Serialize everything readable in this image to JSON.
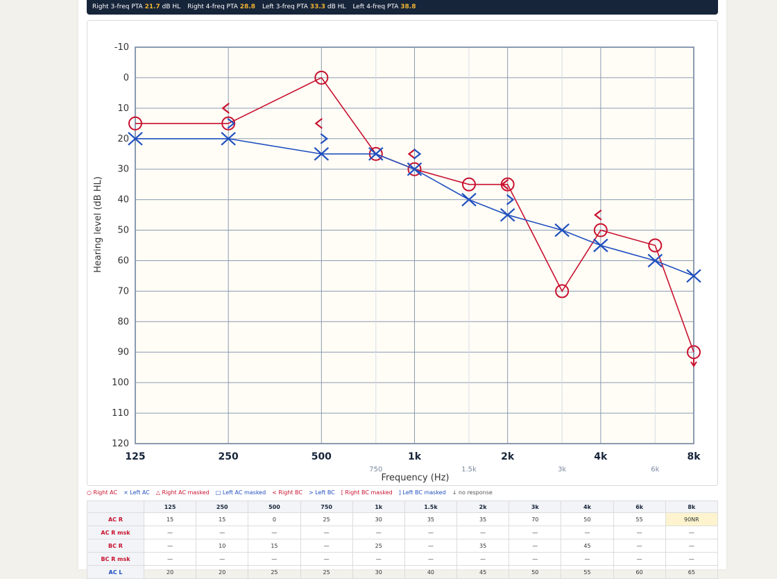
{
  "pta": [
    {
      "label": "Right 3-freq PTA",
      "value": "21.7",
      "unit": "dB HL"
    },
    {
      "label": "Right 4-freq PTA",
      "value": "28.8",
      "unit": ""
    },
    {
      "label": "Left 3-freq PTA",
      "value": "33.3",
      "unit": "dB HL"
    },
    {
      "label": "Left 4-freq PTA",
      "value": "38.8",
      "unit": ""
    }
  ],
  "colors": {
    "right": "#c8102e",
    "left": "#1f4fbf",
    "plot_bg": "#fffdf6",
    "grid": "#8a9ab0",
    "grid_minor": "#d5dbe5",
    "pta_bar": "#17253a",
    "pta_value": "#f2b431"
  },
  "chart_data": {
    "type": "line",
    "title": "",
    "xlabel": "Frequency (Hz)",
    "ylabel": "Hearing level (dB HL)",
    "x_scale": "log2",
    "y_inverted": true,
    "ylim": [
      -10,
      120
    ],
    "yticks": [
      "-10",
      "0",
      "10",
      "20",
      "30",
      "40",
      "50",
      "60",
      "70",
      "80",
      "90",
      "100",
      "110",
      "120"
    ],
    "xticks_major": [
      {
        "hz": 125,
        "label": "125"
      },
      {
        "hz": 250,
        "label": "250"
      },
      {
        "hz": 500,
        "label": "500"
      },
      {
        "hz": 1000,
        "label": "1k"
      },
      {
        "hz": 2000,
        "label": "2k"
      },
      {
        "hz": 4000,
        "label": "4k"
      },
      {
        "hz": 8000,
        "label": "8k"
      }
    ],
    "xticks_minor": [
      {
        "hz": 750,
        "label": "750"
      },
      {
        "hz": 1500,
        "label": "1.5k"
      },
      {
        "hz": 3000,
        "label": "3k"
      },
      {
        "hz": 6000,
        "label": "6k"
      }
    ],
    "grid": true,
    "series": [
      {
        "name": "Right AC",
        "symbol": "circle",
        "color": "#c8102e",
        "connected": true,
        "points": [
          [
            125,
            15
          ],
          [
            250,
            15
          ],
          [
            500,
            0
          ],
          [
            750,
            25
          ],
          [
            1000,
            30
          ],
          [
            1500,
            35
          ],
          [
            2000,
            35
          ],
          [
            3000,
            70
          ],
          [
            4000,
            50
          ],
          [
            6000,
            55
          ],
          [
            8000,
            90
          ]
        ],
        "no_response": [
          8000
        ]
      },
      {
        "name": "Left AC",
        "symbol": "cross",
        "color": "#1f4fbf",
        "connected": true,
        "points": [
          [
            125,
            20
          ],
          [
            250,
            20
          ],
          [
            500,
            25
          ],
          [
            750,
            25
          ],
          [
            1000,
            30
          ],
          [
            1500,
            40
          ],
          [
            2000,
            45
          ],
          [
            3000,
            50
          ],
          [
            4000,
            55
          ],
          [
            6000,
            60
          ],
          [
            8000,
            65
          ]
        ]
      },
      {
        "name": "Right BC",
        "symbol": "lt",
        "color": "#c8102e",
        "connected": false,
        "points": [
          [
            250,
            10
          ],
          [
            500,
            15
          ],
          [
            1000,
            25
          ],
          [
            2000,
            35
          ],
          [
            4000,
            45
          ]
        ]
      },
      {
        "name": "Left BC",
        "symbol": "gt",
        "color": "#1f4fbf",
        "connected": false,
        "points": [
          [
            250,
            15
          ],
          [
            500,
            20
          ],
          [
            1000,
            25
          ],
          [
            2000,
            40
          ]
        ]
      }
    ]
  },
  "legend": [
    {
      "text": "○ Right AC",
      "color": "#c8102e"
    },
    {
      "text": "× Left AC",
      "color": "#1f4fbf"
    },
    {
      "text": "△ Right AC masked",
      "color": "#c8102e"
    },
    {
      "text": "□ Left AC masked",
      "color": "#1f4fbf"
    },
    {
      "text": "< Right BC",
      "color": "#c8102e"
    },
    {
      "text": "> Left BC",
      "color": "#1f4fbf"
    },
    {
      "text": "[ Right BC masked",
      "color": "#c8102e"
    },
    {
      "text": "] Left BC masked",
      "color": "#1f4fbf"
    },
    {
      "text": "↓ no response",
      "color": "#555555"
    }
  ],
  "table": {
    "headers": [
      "125",
      "250",
      "500",
      "750",
      "1k",
      "1.5k",
      "2k",
      "3k",
      "4k",
      "6k",
      "8k"
    ],
    "rows": [
      {
        "label": "AC R",
        "side": "right",
        "cells": [
          "15",
          "15",
          "0",
          "25",
          "30",
          "35",
          "35",
          "70",
          "50",
          "55",
          "90NR"
        ],
        "highlight": [
          10
        ]
      },
      {
        "label": "AC R msk",
        "side": "right",
        "cells": [
          "—",
          "—",
          "—",
          "—",
          "—",
          "—",
          "—",
          "—",
          "—",
          "—",
          "—"
        ],
        "highlight": []
      },
      {
        "label": "BC R",
        "side": "right",
        "cells": [
          "—",
          "10",
          "15",
          "—",
          "25",
          "—",
          "35",
          "—",
          "45",
          "—",
          "—"
        ],
        "highlight": []
      },
      {
        "label": "BC R msk",
        "side": "right",
        "cells": [
          "—",
          "—",
          "—",
          "—",
          "—",
          "—",
          "—",
          "—",
          "—",
          "—",
          "—"
        ],
        "highlight": []
      },
      {
        "label": "AC L",
        "side": "left",
        "cells": [
          "20",
          "20",
          "25",
          "25",
          "30",
          "40",
          "45",
          "50",
          "55",
          "60",
          "65"
        ],
        "highlight": []
      }
    ]
  }
}
